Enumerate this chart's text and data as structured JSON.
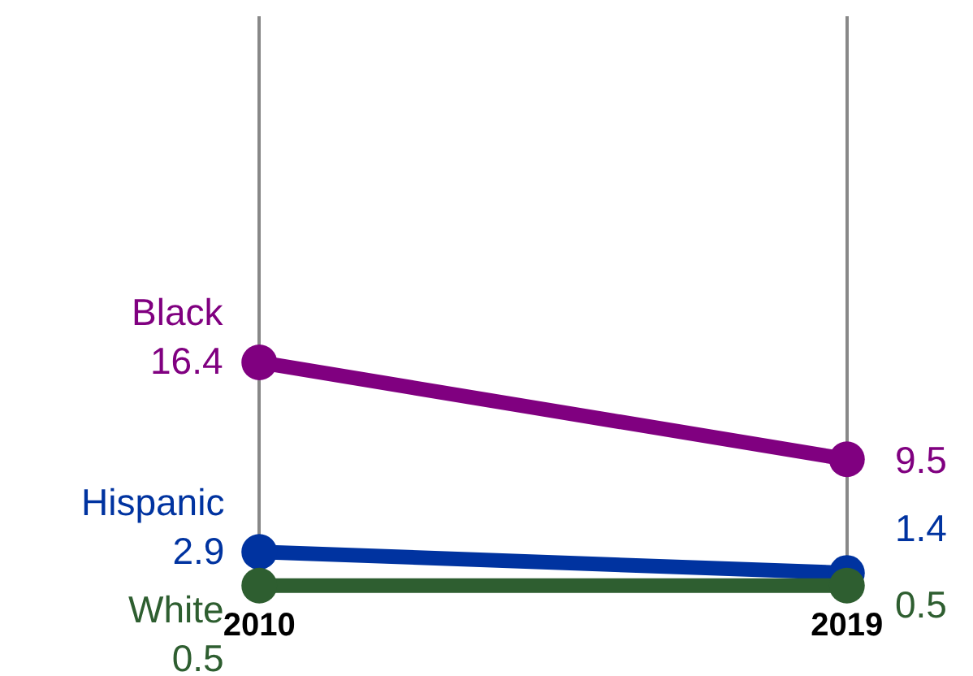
{
  "chart_data": {
    "type": "line",
    "categories": [
      "2010",
      "2019"
    ],
    "series": [
      {
        "name": "Black",
        "color": "#800080",
        "values": [
          16.4,
          9.5
        ]
      },
      {
        "name": "Hispanic",
        "color": "#0033a0",
        "values": [
          2.9,
          1.4
        ]
      },
      {
        "name": "White",
        "color": "#2e5e30",
        "values": [
          0.5,
          0.5
        ]
      }
    ],
    "data_labels": true,
    "grid": "x",
    "marker": "circle",
    "line_style": "solid",
    "legend": false,
    "tick_labels": "x"
  }
}
